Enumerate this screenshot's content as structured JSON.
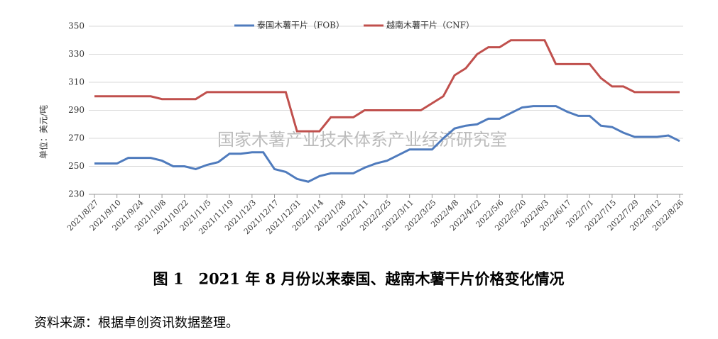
{
  "chart_data": {
    "type": "line",
    "title": "图 1　2021 年 8 月份以来泰国、越南木薯干片价格变化情况",
    "source": "资料来源：根据卓创资讯数据整理。",
    "watermark": "国家木薯产业技术体系产业经济研究室",
    "y_label": "单位：美元/吨",
    "categories": [
      "2021/8/27",
      null,
      "2021/9/10",
      null,
      "2021/9/24",
      null,
      "2021/10/8",
      null,
      "2021/10/22",
      null,
      "2021/11/5",
      null,
      "2021/11/19",
      null,
      "2021/12/3",
      null,
      "2021/12/17",
      null,
      "2021/12/31",
      null,
      "2022/1/14",
      null,
      "2022/1/28",
      null,
      "2022/2/11",
      null,
      "2022/2/25",
      null,
      "2022/3/11",
      null,
      "2022/3/25",
      null,
      "2022/4/8",
      null,
      "2022/4/22",
      null,
      "2022/5/6",
      null,
      "2022/5/20",
      null,
      "2022/6/3",
      null,
      "2022/6/17",
      null,
      "2022/7/1",
      null,
      "2022/7/15",
      null,
      "2022/7/29",
      null,
      "2022/8/12",
      null,
      "2022/8/26"
    ],
    "series": [
      {
        "name": "泰国木薯干片（FOB）",
        "color": "#4f7bbd",
        "values": [
          252,
          252,
          252,
          256,
          256,
          256,
          254,
          250,
          250,
          248,
          251,
          253,
          259,
          259,
          260,
          260,
          248,
          246,
          241,
          239,
          243,
          245,
          245,
          245,
          249,
          252,
          254,
          258,
          262,
          262,
          262,
          270,
          277,
          279,
          280,
          284,
          284,
          288,
          292,
          293,
          293,
          293,
          289,
          286,
          286,
          279,
          278,
          274,
          271,
          271,
          271,
          272,
          268
        ]
      },
      {
        "name": "越南木薯干片（CNF）",
        "color": "#c0504d",
        "values": [
          300,
          300,
          300,
          300,
          300,
          300,
          298,
          298,
          298,
          298,
          303,
          303,
          303,
          303,
          303,
          303,
          303,
          303,
          275,
          275,
          275,
          285,
          285,
          285,
          290,
          290,
          290,
          290,
          290,
          290,
          295,
          300,
          315,
          320,
          330,
          335,
          335,
          340,
          340,
          340,
          340,
          323,
          323,
          323,
          323,
          313,
          307,
          307,
          303,
          303,
          303,
          303,
          303
        ]
      }
    ],
    "ylim": [
      230,
      350
    ],
    "yticks": [
      230,
      250,
      270,
      290,
      310,
      330,
      350
    ],
    "grid": true,
    "legend": "top"
  }
}
